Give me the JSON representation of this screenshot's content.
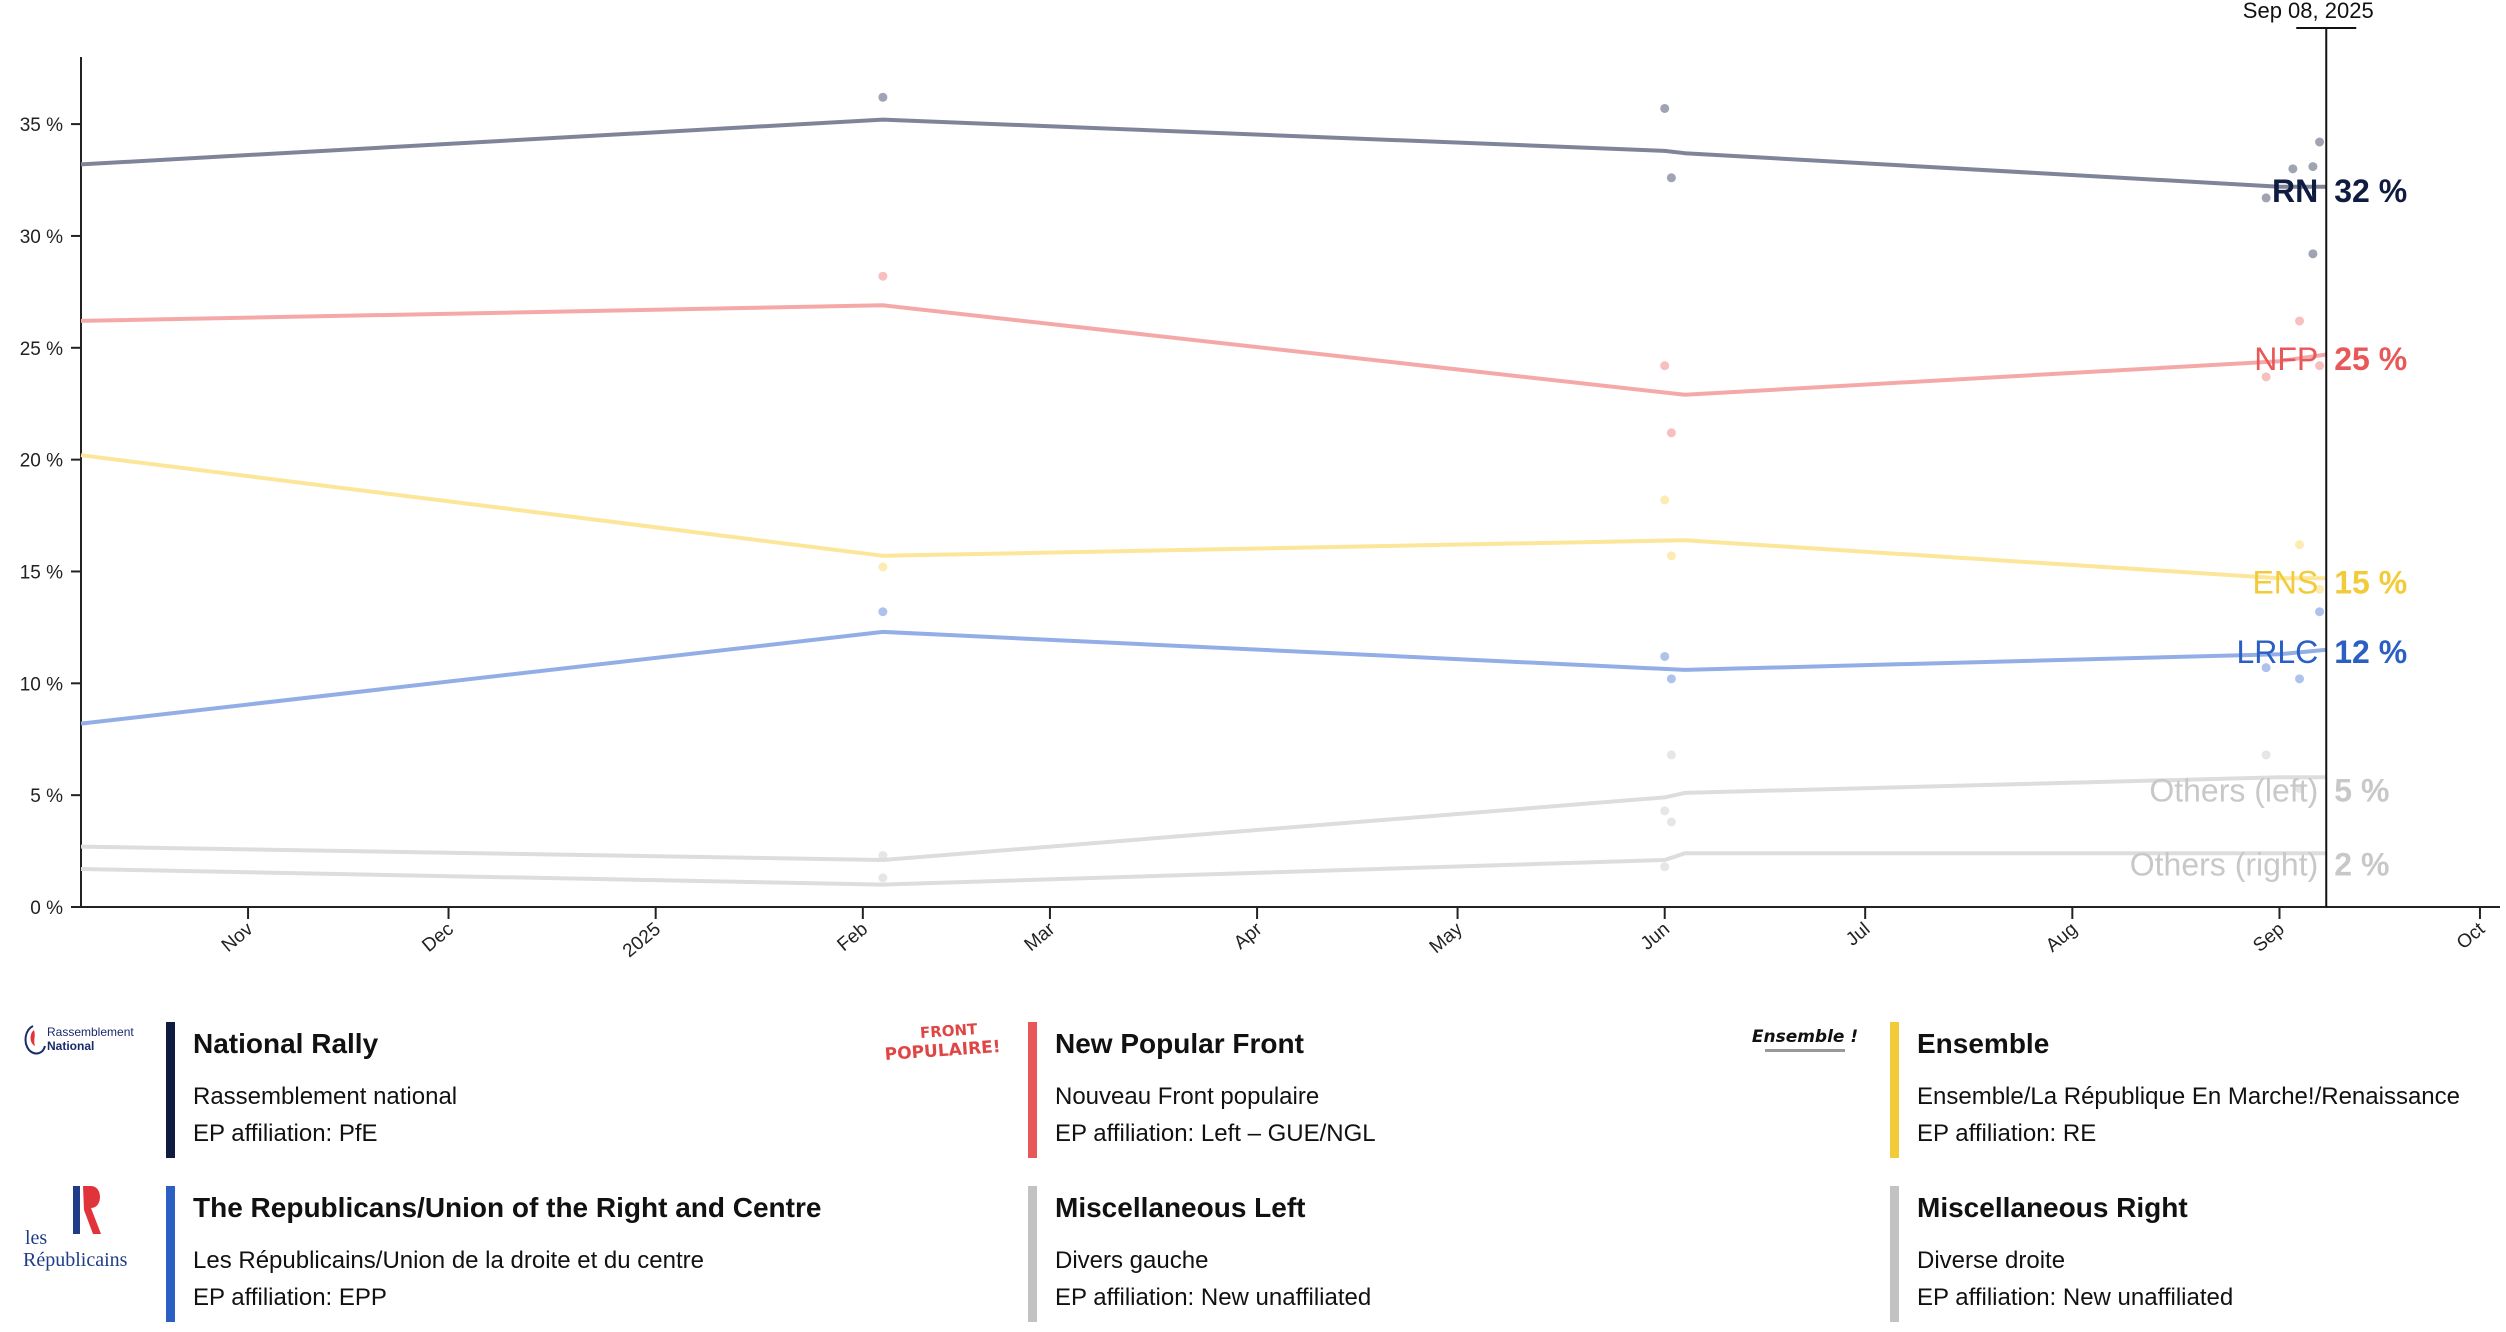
{
  "chart_data": {
    "type": "line",
    "ylim": [
      0,
      38
    ],
    "y_ticks": [
      0,
      5,
      10,
      15,
      20,
      25,
      30,
      35
    ],
    "y_tick_suffix": " %",
    "x_range": [
      "2024-10-07",
      "2025-10-04"
    ],
    "x_ticks": [
      {
        "date": "2024-11-01",
        "label": "Nov"
      },
      {
        "date": "2024-12-01",
        "label": "Dec"
      },
      {
        "date": "2025-01-01",
        "label": "2025"
      },
      {
        "date": "2025-02-01",
        "label": "Feb"
      },
      {
        "date": "2025-03-01",
        "label": "Mar"
      },
      {
        "date": "2025-04-01",
        "label": "Apr"
      },
      {
        "date": "2025-05-01",
        "label": "May"
      },
      {
        "date": "2025-06-01",
        "label": "Jun"
      },
      {
        "date": "2025-07-01",
        "label": "Jul"
      },
      {
        "date": "2025-08-01",
        "label": "Aug"
      },
      {
        "date": "2025-09-01",
        "label": "Sep"
      },
      {
        "date": "2025-10-01",
        "label": "Oct"
      }
    ],
    "current_date": "2025-09-08",
    "current_date_label": "Sep 08, 2025",
    "grid": false,
    "series": [
      {
        "name": "RN",
        "end_label": "32 %",
        "color": "#0f1c40",
        "line_color": "#7f8499",
        "points": [
          [
            "2024-10-07",
            33.2
          ],
          [
            "2025-02-04",
            35.2
          ],
          [
            "2025-06-01",
            33.8
          ],
          [
            "2025-06-04",
            33.7
          ],
          [
            "2025-09-01",
            32.2
          ],
          [
            "2025-09-08",
            32.2
          ]
        ],
        "polls": [
          [
            "2025-02-04",
            36.2
          ],
          [
            "2025-06-01",
            35.7
          ],
          [
            "2025-06-02",
            32.6
          ],
          [
            "2025-08-30",
            31.7
          ],
          [
            "2025-09-03",
            33.0
          ],
          [
            "2025-09-06",
            29.2
          ],
          [
            "2025-09-06",
            33.1
          ],
          [
            "2025-09-07",
            34.2
          ]
        ]
      },
      {
        "name": "NFP",
        "end_label": "25 %",
        "color": "#e85858",
        "line_color": "#f4a9a8",
        "points": [
          [
            "2024-10-07",
            26.2
          ],
          [
            "2025-02-04",
            26.9
          ],
          [
            "2025-06-04",
            22.9
          ],
          [
            "2025-09-01",
            24.4
          ],
          [
            "2025-09-08",
            24.7
          ]
        ],
        "polls": [
          [
            "2025-02-04",
            28.2
          ],
          [
            "2025-06-01",
            24.2
          ],
          [
            "2025-06-02",
            21.2
          ],
          [
            "2025-08-30",
            23.7
          ],
          [
            "2025-09-04",
            26.2
          ],
          [
            "2025-09-07",
            24.2
          ]
        ]
      },
      {
        "name": "ENS",
        "end_label": "15 %",
        "color": "#f2cb3a",
        "line_color": "#fbe69a",
        "points": [
          [
            "2024-10-07",
            20.2
          ],
          [
            "2025-02-04",
            15.7
          ],
          [
            "2025-06-04",
            16.4
          ],
          [
            "2025-09-01",
            14.7
          ],
          [
            "2025-09-08",
            14.7
          ]
        ],
        "polls": [
          [
            "2025-02-04",
            15.2
          ],
          [
            "2025-06-01",
            18.2
          ],
          [
            "2025-06-02",
            15.7
          ],
          [
            "2025-09-04",
            16.2
          ],
          [
            "2025-09-07",
            14.2
          ]
        ]
      },
      {
        "name": "LRLC",
        "end_label": "12 %",
        "color": "#2b5fc4",
        "line_color": "#93aee6",
        "points": [
          [
            "2024-10-07",
            8.2
          ],
          [
            "2025-02-04",
            12.3
          ],
          [
            "2025-06-04",
            10.6
          ],
          [
            "2025-09-01",
            11.3
          ],
          [
            "2025-09-08",
            11.5
          ]
        ],
        "polls": [
          [
            "2025-02-04",
            13.2
          ],
          [
            "2025-06-01",
            11.2
          ],
          [
            "2025-06-02",
            10.2
          ],
          [
            "2025-08-30",
            10.7
          ],
          [
            "2025-09-04",
            10.2
          ],
          [
            "2025-09-07",
            13.2
          ]
        ]
      },
      {
        "name": "Others (left)",
        "end_label": "5 %",
        "color": "#c8c8c8",
        "line_color": "#dddddd",
        "points": [
          [
            "2024-10-07",
            2.7
          ],
          [
            "2025-02-04",
            2.1
          ],
          [
            "2025-06-01",
            4.9
          ],
          [
            "2025-06-04",
            5.1
          ],
          [
            "2025-09-01",
            5.8
          ],
          [
            "2025-09-08",
            5.8
          ]
        ],
        "polls": [
          [
            "2025-02-04",
            2.3
          ],
          [
            "2025-06-01",
            4.3
          ],
          [
            "2025-06-02",
            6.8
          ],
          [
            "2025-08-30",
            6.8
          ],
          [
            "2025-09-04",
            5.3
          ]
        ]
      },
      {
        "name": "Others (right)",
        "end_label": "2 %",
        "color": "#c8c8c8",
        "line_color": "#dddddd",
        "points": [
          [
            "2024-10-07",
            1.7
          ],
          [
            "2025-02-04",
            1.0
          ],
          [
            "2025-06-01",
            2.1
          ],
          [
            "2025-06-04",
            2.4
          ],
          [
            "2025-09-01",
            2.4
          ],
          [
            "2025-09-08",
            2.4
          ]
        ],
        "polls": [
          [
            "2025-02-04",
            1.3
          ],
          [
            "2025-06-01",
            1.8
          ],
          [
            "2025-06-02",
            3.8
          ]
        ]
      }
    ]
  },
  "legend": [
    {
      "title": "National Rally",
      "subtitle": "Rassemblement national",
      "ep": "EP affiliation: PfE",
      "bar_color": "#0f1c40",
      "logo_icon": "rassemblement-national-logo",
      "logo_text_1": "Rassemblement",
      "logo_text_2": "National"
    },
    {
      "title": "New Popular Front",
      "subtitle": "Nouveau Front populaire",
      "ep": "EP affiliation: Left – GUE/NGL",
      "bar_color": "#e85858",
      "logo_icon": "front-populaire-logo",
      "logo_text_1": "FRONT",
      "logo_text_2": "POPULAIRE!"
    },
    {
      "title": "Ensemble",
      "subtitle": "Ensemble/La République En Marche!/Renaissance",
      "ep": "EP affiliation: RE",
      "bar_color": "#f2cb3a",
      "logo_icon": "ensemble-logo",
      "logo_text_1": "Ensemble !",
      "logo_text_2": ""
    },
    {
      "title": "The Republicans/Union of the Right and Centre",
      "subtitle": "Les Républicains/Union de la droite et du centre",
      "ep": "EP affiliation: EPP",
      "bar_color": "#2b5fc4",
      "logo_icon": "les-republicains-logo",
      "logo_text_1": "les",
      "logo_text_2": "Républicains"
    },
    {
      "title": "Miscellaneous Left",
      "subtitle": "Divers gauche",
      "ep": "EP affiliation: New unaffiliated",
      "bar_color": "#c2c2c2",
      "logo_icon": "",
      "logo_text_1": "",
      "logo_text_2": ""
    },
    {
      "title": "Miscellaneous Right",
      "subtitle": "Diverse droite",
      "ep": "EP affiliation: New unaffiliated",
      "bar_color": "#c2c2c2",
      "logo_icon": "",
      "logo_text_1": "",
      "logo_text_2": ""
    }
  ]
}
